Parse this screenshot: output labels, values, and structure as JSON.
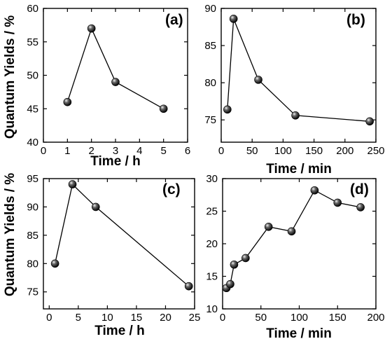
{
  "figure": {
    "ylabel_top": "Quantum Yields / %",
    "ylabel_bottom": "Quantum Yields / %"
  },
  "chart_data": [
    {
      "type": "line",
      "panel": "(a)",
      "xlabel": "Time / h",
      "ylabel": "Quantum Yields / %",
      "xlim": [
        0,
        6
      ],
      "ylim": [
        40,
        60
      ],
      "xticks": [
        0,
        1,
        2,
        3,
        4,
        5,
        6
      ],
      "yticks": [
        40,
        45,
        50,
        55,
        60
      ],
      "x": [
        1,
        2,
        3,
        5
      ],
      "y": [
        46,
        57,
        49,
        45
      ],
      "marker": "sphere",
      "color": "#000000"
    },
    {
      "type": "line",
      "panel": "(b)",
      "xlabel": "Time / min",
      "ylabel": "",
      "xlim": [
        0,
        250
      ],
      "ylim": [
        72,
        90
      ],
      "xticks": [
        0,
        50,
        100,
        150,
        200,
        250
      ],
      "yticks": [
        75,
        80,
        85,
        90
      ],
      "x": [
        10,
        20,
        60,
        120,
        240
      ],
      "y": [
        76.4,
        88.6,
        80.4,
        75.6,
        74.8
      ],
      "marker": "sphere",
      "color": "#000000"
    },
    {
      "type": "line",
      "panel": "(c)",
      "xlabel": "Time / h",
      "ylabel": "Quantum Yields / %",
      "xlim": [
        -1,
        25
      ],
      "ylim": [
        72,
        95
      ],
      "xticks": [
        0,
        5,
        10,
        15,
        20,
        25
      ],
      "yticks": [
        75,
        80,
        85,
        90,
        95
      ],
      "x": [
        1,
        4,
        8,
        24
      ],
      "y": [
        80,
        94,
        90,
        76
      ],
      "marker": "sphere",
      "color": "#000000"
    },
    {
      "type": "line",
      "panel": "(d)",
      "xlabel": "Time / min",
      "ylabel": "",
      "xlim": [
        0,
        200
      ],
      "ylim": [
        10,
        30
      ],
      "xticks": [
        0,
        50,
        100,
        150,
        200
      ],
      "yticks": [
        10,
        15,
        20,
        25,
        30
      ],
      "x": [
        5,
        10,
        15,
        30,
        60,
        90,
        120,
        150,
        180
      ],
      "y": [
        13.2,
        13.8,
        16.8,
        17.8,
        22.6,
        21.9,
        28.2,
        26.3,
        25.6
      ],
      "marker": "sphere",
      "color": "#000000"
    }
  ]
}
